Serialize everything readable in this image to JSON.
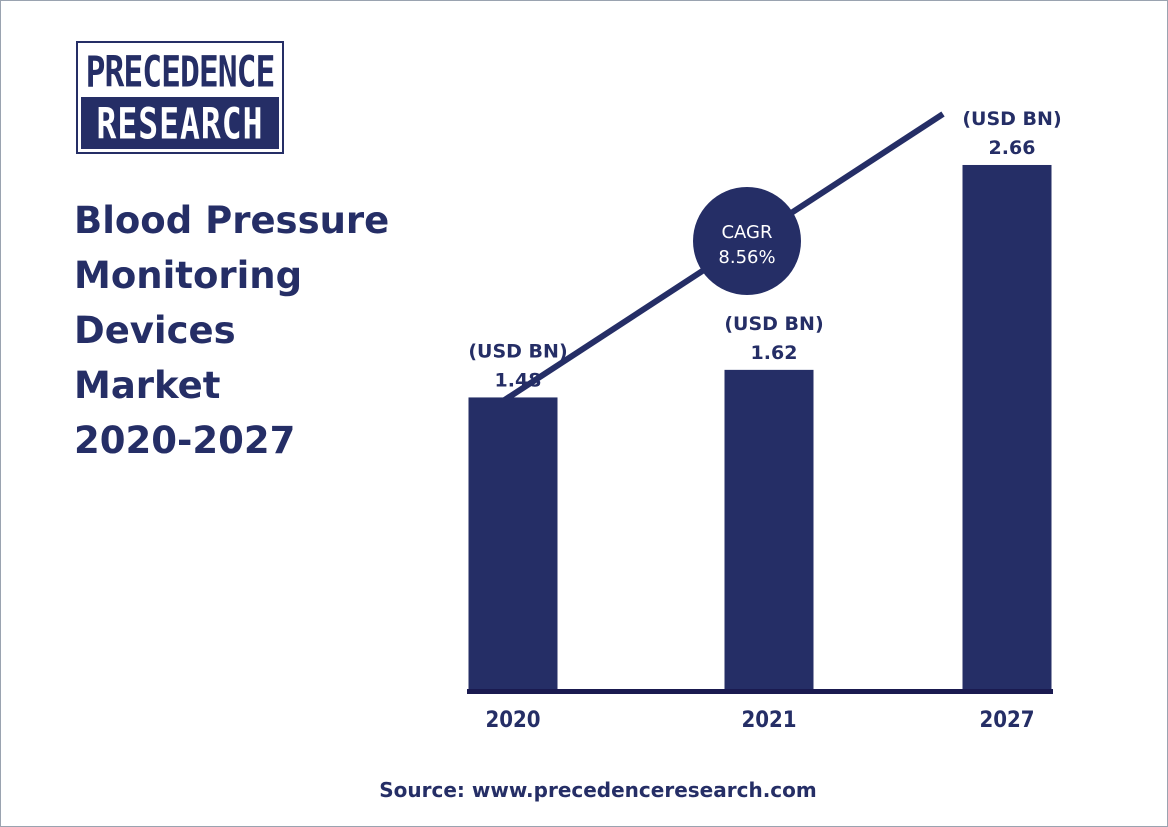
{
  "logo": {
    "line1": "PRECEDENCE",
    "line2": "RESEARCH"
  },
  "title_lines": [
    "Blood Pressure",
    "Monitoring",
    "Devices",
    "Market",
    "2020-2027"
  ],
  "source": "Source: www.precedenceresearch.com",
  "cagr": {
    "label": "CAGR",
    "value": "8.56%"
  },
  "colors": {
    "navy": "#252e66",
    "background": "#ffffff"
  },
  "chart_data": {
    "type": "bar",
    "title": "Blood Pressure Monitoring Devices Market 2020-2027",
    "categories": [
      "2020",
      "2021",
      "2027"
    ],
    "values": [
      1.48,
      1.62,
      2.66
    ],
    "value_labels": [
      "1.48",
      "1.62",
      "2.66"
    ],
    "unit_label": "(USD BN)",
    "annotation": "CAGR 8.56%",
    "legend": "none",
    "grid": false
  }
}
